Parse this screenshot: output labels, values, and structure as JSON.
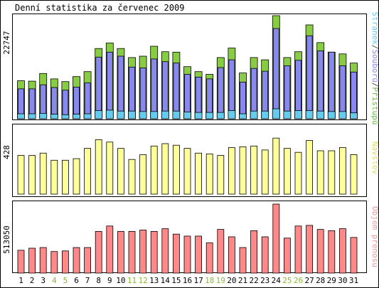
{
  "chart_data": [
    {
      "type": "bar",
      "title": "Denní statistika za červenec 2009",
      "y_tick_label": "22747",
      "ylim": [
        0,
        22747
      ],
      "legend_right": [
        {
          "label": "Stránek",
          "color": "#66ccee"
        },
        {
          "label": "/",
          "color": "#555555"
        },
        {
          "label": "Souborů",
          "color": "#8888ee"
        },
        {
          "label": "/",
          "color": "#555555"
        },
        {
          "label": "Přístupů",
          "color": "#66bb44"
        }
      ],
      "categories": [
        "1",
        "2",
        "3",
        "4",
        "5",
        "6",
        "7",
        "8",
        "9",
        "10",
        "11",
        "12",
        "13",
        "14",
        "15",
        "16",
        "17",
        "18",
        "19",
        "20",
        "21",
        "22",
        "23",
        "24",
        "25",
        "26",
        "27",
        "28",
        "29",
        "30",
        "31"
      ],
      "series": [
        {
          "name": "Přístupů",
          "color": "#88cc44",
          "values": [
            8400,
            8300,
            10000,
            8800,
            8200,
            9300,
            10400,
            15500,
            16700,
            15500,
            13500,
            13800,
            16000,
            14800,
            14700,
            11500,
            10400,
            9800,
            13500,
            15600,
            10100,
            13500,
            13000,
            22747,
            13500,
            14800,
            20700,
            16800,
            14700,
            14300,
            12300
          ]
        },
        {
          "name": "Souborů",
          "color": "#8888ee",
          "values": [
            6600,
            6600,
            7500,
            6900,
            6300,
            7000,
            7900,
            13600,
            14700,
            13800,
            11400,
            11200,
            13200,
            12600,
            12300,
            9800,
            9200,
            8800,
            11300,
            13000,
            8100,
            11100,
            10500,
            19900,
            11700,
            12900,
            18300,
            15000,
            14700,
            11700,
            10300
          ]
        },
        {
          "name": "Stránek",
          "color": "#66ccee",
          "values": [
            1100,
            1100,
            1200,
            1000,
            900,
            1000,
            1100,
            1800,
            1900,
            1700,
            1700,
            1600,
            1600,
            1700,
            1700,
            1500,
            1400,
            1400,
            1400,
            1800,
            1100,
            1700,
            1700,
            2200,
            1700,
            1800,
            1800,
            1700,
            1600,
            1600,
            1300
          ]
        }
      ],
      "weekend_days": [
        "4",
        "5",
        "11",
        "12",
        "18",
        "19",
        "25",
        "26"
      ],
      "weekend_label_color": "#88bb33",
      "weekday_label_color": "#000000"
    },
    {
      "type": "bar",
      "y_tick_label": "428",
      "ylim": [
        0,
        428
      ],
      "legend_right": [
        {
          "label": "Návštěv",
          "color": "#dddd66"
        }
      ],
      "series": [
        {
          "name": "Návštěv",
          "color": "#ffff99",
          "values": [
            245,
            245,
            260,
            215,
            215,
            225,
            290,
            345,
            330,
            290,
            220,
            250,
            305,
            320,
            310,
            290,
            260,
            255,
            245,
            295,
            300,
            305,
            280,
            355,
            290,
            265,
            340,
            275,
            275,
            295,
            250
          ]
        }
      ]
    },
    {
      "type": "bar",
      "y_tick_label": "513050",
      "ylim": [
        0,
        513050
      ],
      "legend_right": [
        {
          "label": "Objem přenosu",
          "color": "#ee9999"
        }
      ],
      "series": [
        {
          "name": "Objem přenosu",
          "color": "#ff8888",
          "values": [
            170000,
            185000,
            190000,
            160000,
            165000,
            190000,
            190000,
            310000,
            350000,
            310000,
            310000,
            320000,
            310000,
            330000,
            290000,
            275000,
            275000,
            225000,
            325000,
            270000,
            190000,
            315000,
            270000,
            513050,
            260000,
            350000,
            355000,
            325000,
            315000,
            330000,
            265000
          ]
        }
      ]
    }
  ]
}
